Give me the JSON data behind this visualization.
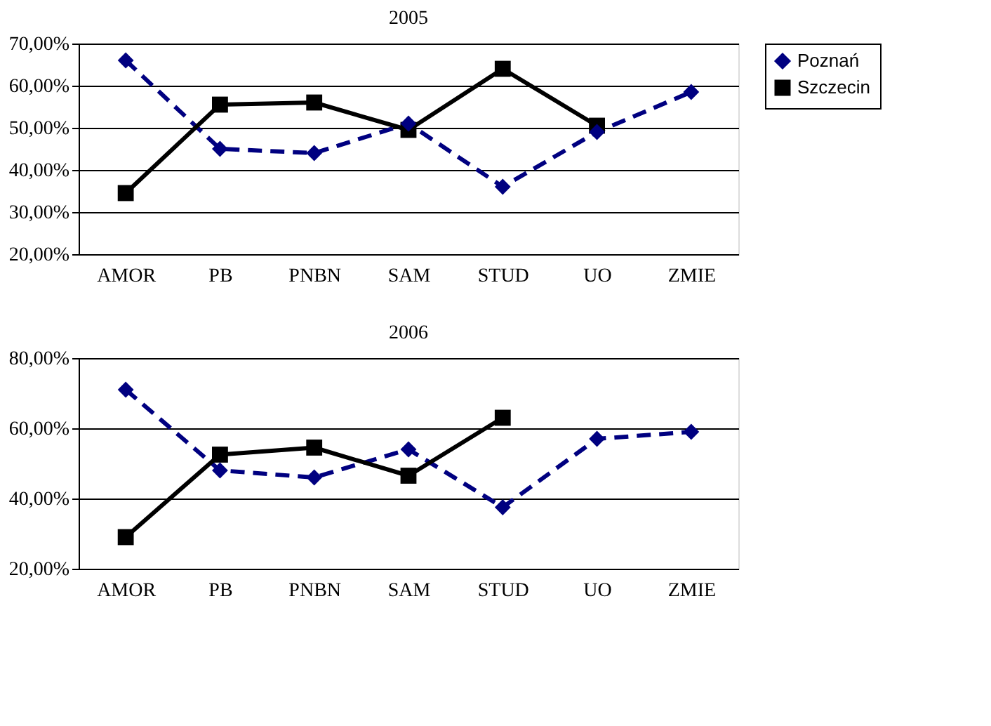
{
  "chart_data": [
    {
      "type": "line",
      "title": "2005",
      "categories": [
        "AMOR",
        "PB",
        "PNBN",
        "SAM",
        "STUD",
        "UO",
        "ZMIE"
      ],
      "ylim": [
        20,
        70
      ],
      "yticks": [
        {
          "value": 20,
          "label": "20,00%"
        },
        {
          "value": 30,
          "label": "30,00%"
        },
        {
          "value": 40,
          "label": "40,00%"
        },
        {
          "value": 50,
          "label": "50,00%"
        },
        {
          "value": 60,
          "label": "60,00%"
        },
        {
          "value": 70,
          "label": "70,00%"
        }
      ],
      "grid": "y",
      "legend": "right",
      "series": [
        {
          "name": "Poznań",
          "color": "#000080",
          "line_style": "dashed",
          "marker": "diamond",
          "values": [
            66,
            45,
            44,
            51,
            36,
            49,
            58.5
          ]
        },
        {
          "name": "Szczecin",
          "color": "#000000",
          "line_style": "solid",
          "marker": "square",
          "values": [
            34.5,
            55.5,
            56,
            49.5,
            64,
            50.5,
            null
          ]
        }
      ]
    },
    {
      "type": "line",
      "title": "2006",
      "categories": [
        "AMOR",
        "PB",
        "PNBN",
        "SAM",
        "STUD",
        "UO",
        "ZMIE"
      ],
      "ylim": [
        20,
        80
      ],
      "yticks": [
        {
          "value": 20,
          "label": "20,00%"
        },
        {
          "value": 40,
          "label": "40,00%"
        },
        {
          "value": 60,
          "label": "60,00%"
        },
        {
          "value": 80,
          "label": "80,00%"
        }
      ],
      "grid": "y",
      "legend": "right",
      "series": [
        {
          "name": "Poznań",
          "color": "#000080",
          "line_style": "dashed",
          "marker": "diamond",
          "values": [
            71,
            48,
            46,
            54,
            37.5,
            57,
            59
          ]
        },
        {
          "name": "Szczecin",
          "color": "#000000",
          "line_style": "solid",
          "marker": "square",
          "values": [
            29,
            52.5,
            54.5,
            46.5,
            63,
            null,
            null
          ]
        }
      ]
    }
  ]
}
